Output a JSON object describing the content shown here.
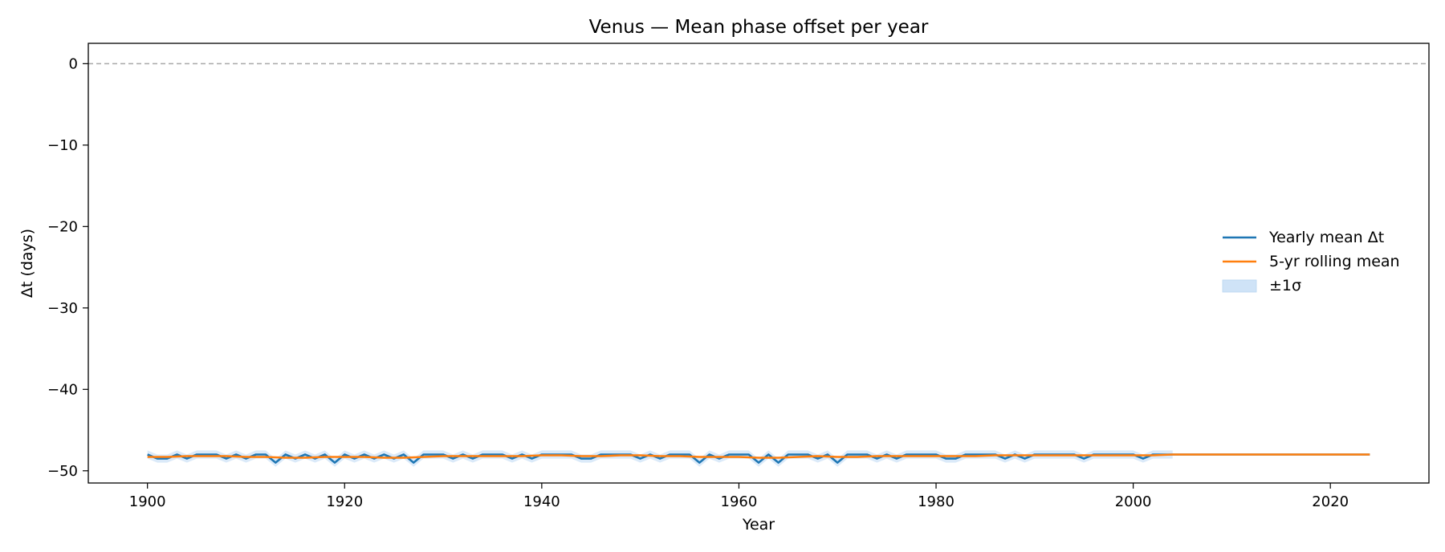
{
  "chart_data": {
    "type": "line",
    "title": "Venus — Mean phase offset per year",
    "xlabel": "Year",
    "ylabel": "Δt (days)",
    "xlim": [
      1894,
      2030
    ],
    "ylim": [
      -51.5,
      2.5
    ],
    "xticks": [
      1900,
      1920,
      1940,
      1960,
      1980,
      2000,
      2020
    ],
    "yticks": [
      0,
      -10,
      -20,
      -30,
      -40,
      -50
    ],
    "reference_line": {
      "y": 0,
      "style": "dashed",
      "color": "#a8a8a8"
    },
    "legend_position": "center-right",
    "colors": {
      "mean": "#1f77b4",
      "rolling": "#ff7f0e",
      "band": "#cfe3f7"
    },
    "series": [
      {
        "name": "Yearly mean Δt",
        "x": [
          1900,
          1901,
          1902,
          1903,
          1904,
          1905,
          1906,
          1907,
          1908,
          1909,
          1910,
          1911,
          1912,
          1913,
          1914,
          1915,
          1916,
          1917,
          1918,
          1919,
          1920,
          1921,
          1922,
          1923,
          1924,
          1925,
          1926,
          1927,
          1928,
          1929,
          1930,
          1931,
          1932,
          1933,
          1934,
          1935,
          1936,
          1937,
          1938,
          1939,
          1940,
          1941,
          1942,
          1943,
          1944,
          1945,
          1946,
          1947,
          1948,
          1949,
          1950,
          1951,
          1952,
          1953,
          1954,
          1955,
          1956,
          1957,
          1958,
          1959,
          1960,
          1961,
          1962,
          1963,
          1964,
          1965,
          1966,
          1967,
          1968,
          1969,
          1970,
          1971,
          1972,
          1973,
          1974,
          1975,
          1976,
          1977,
          1978,
          1979,
          1980,
          1981,
          1982,
          1983,
          1984,
          1985,
          1986,
          1987,
          1988,
          1989,
          1990,
          1991,
          1992,
          1993,
          1994,
          1995,
          1996,
          1997,
          1998,
          1999,
          2000,
          2001,
          2002,
          2003,
          2004,
          2005,
          2006,
          2007,
          2008,
          2009,
          2010,
          2011,
          2012,
          2013,
          2014,
          2015,
          2016,
          2017,
          2018,
          2019,
          2020,
          2021,
          2022,
          2023,
          2024
        ],
        "y": [
          -48,
          -48.5,
          -48.5,
          -48,
          -48.5,
          -48,
          -48,
          -48,
          -48.5,
          -48,
          -48.5,
          -48,
          -48,
          -49,
          -48,
          -48.5,
          -48,
          -48.5,
          -48,
          -49,
          -48,
          -48.5,
          -48,
          -48.5,
          -48,
          -48.5,
          -48,
          -49,
          -48,
          -48,
          -48,
          -48.5,
          -48,
          -48.5,
          -48,
          -48,
          -48,
          -48.5,
          -48,
          -48.5,
          -48,
          -48,
          -48,
          -48,
          -48.5,
          -48.5,
          -48,
          -48,
          -48,
          -48,
          -48.5,
          -48,
          -48.5,
          -48,
          -48,
          -48,
          -49,
          -48,
          -48.5,
          -48,
          -48,
          -48,
          -49,
          -48,
          -49,
          -48,
          -48,
          -48,
          -48.5,
          -48,
          -49,
          -48,
          -48,
          -48,
          -48.5,
          -48,
          -48.5,
          -48,
          -48,
          -48,
          -48,
          -48.5,
          -48.5,
          -48,
          -48,
          -48,
          -48,
          -48.5,
          -48,
          -48.5,
          -48,
          -48,
          -48,
          -48,
          -48,
          -48.5,
          -48,
          -48,
          -48,
          -48,
          -48,
          -48.5,
          -48,
          -48,
          -48,
          -48,
          -48,
          -48,
          -48,
          -48,
          -48,
          -48,
          -48,
          -48,
          -48,
          -48,
          -48,
          -48,
          -48,
          -48,
          -48,
          -48,
          -48,
          -48,
          -48
        ]
      },
      {
        "name": "5-yr rolling mean",
        "x": [
          1900,
          1902,
          1904,
          1906,
          1908,
          1910,
          1912,
          1914,
          1916,
          1918,
          1920,
          1922,
          1924,
          1926,
          1928,
          1930,
          1932,
          1934,
          1936,
          1938,
          1940,
          1942,
          1944,
          1946,
          1948,
          1950,
          1952,
          1954,
          1956,
          1958,
          1960,
          1962,
          1964,
          1966,
          1968,
          1970,
          1972,
          1974,
          1976,
          1978,
          1980,
          1982,
          1984,
          1986,
          1988,
          1990,
          1992,
          1994,
          1996,
          1998,
          2000,
          2002,
          2004,
          2010,
          2016,
          2024
        ],
        "y": [
          -48.3,
          -48.3,
          -48.2,
          -48.2,
          -48.2,
          -48.3,
          -48.3,
          -48.4,
          -48.4,
          -48.3,
          -48.3,
          -48.3,
          -48.4,
          -48.4,
          -48.3,
          -48.2,
          -48.2,
          -48.2,
          -48.2,
          -48.2,
          -48.1,
          -48.1,
          -48.2,
          -48.2,
          -48.1,
          -48.1,
          -48.2,
          -48.2,
          -48.3,
          -48.3,
          -48.3,
          -48.4,
          -48.4,
          -48.3,
          -48.2,
          -48.3,
          -48.3,
          -48.2,
          -48.2,
          -48.2,
          -48.2,
          -48.2,
          -48.2,
          -48.1,
          -48.1,
          -48.1,
          -48.1,
          -48.1,
          -48.1,
          -48.1,
          -48.1,
          -48.1,
          -48,
          -48,
          -48,
          -48
        ]
      }
    ],
    "band": {
      "name": "±1σ",
      "x": [
        1900,
        1901,
        1902,
        1903,
        1904,
        1905,
        1906,
        1907,
        1908,
        1909,
        1910,
        1911,
        1912,
        1913,
        1914,
        1915,
        1916,
        1917,
        1918,
        1919,
        1920,
        1921,
        1922,
        1923,
        1924,
        1925,
        1926,
        1927,
        1928,
        1929,
        1930,
        1931,
        1932,
        1933,
        1934,
        1935,
        1936,
        1937,
        1938,
        1939,
        1940,
        1941,
        1942,
        1943,
        1944,
        1945,
        1946,
        1947,
        1948,
        1949,
        1950,
        1951,
        1952,
        1953,
        1954,
        1955,
        1956,
        1957,
        1958,
        1959,
        1960,
        1961,
        1962,
        1963,
        1964,
        1965,
        1966,
        1967,
        1968,
        1969,
        1970,
        1971,
        1972,
        1973,
        1974,
        1975,
        1976,
        1977,
        1978,
        1979,
        1980,
        1981,
        1982,
        1983,
        1984,
        1985,
        1986,
        1987,
        1988,
        1989,
        1990,
        1991,
        1992,
        1993,
        1994,
        1995,
        1996,
        1997,
        1998,
        1999,
        2000,
        2001,
        2002,
        2003,
        2004
      ],
      "sigma": 0.5
    }
  }
}
